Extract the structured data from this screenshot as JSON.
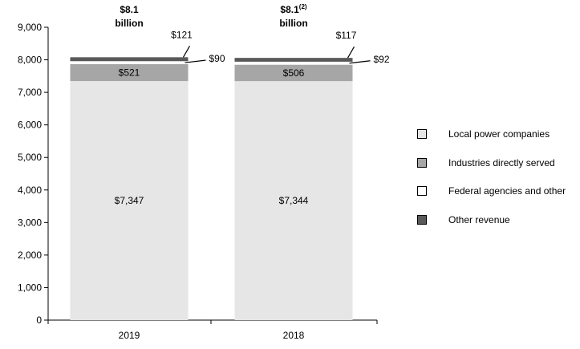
{
  "chart_data": {
    "type": "bar",
    "stacked": true,
    "categories": [
      "2019",
      "2018"
    ],
    "series": [
      {
        "name": "Local power companies",
        "values": [
          7347,
          7344
        ],
        "labels": [
          "$7,347",
          "$7,344"
        ],
        "color": "#e6e6e6"
      },
      {
        "name": "Industries directly served",
        "values": [
          521,
          506
        ],
        "labels": [
          "$521",
          "$506"
        ],
        "color": "#a6a6a6"
      },
      {
        "name": "Federal agencies and other",
        "values": [
          90,
          92
        ],
        "labels": [
          "$90",
          "$92"
        ],
        "color": "#ffffff"
      },
      {
        "name": "Other revenue",
        "values": [
          121,
          117
        ],
        "labels": [
          "$121",
          "$117"
        ],
        "color": "#595959"
      }
    ],
    "totals": [
      {
        "value": "$8.1",
        "sup": "",
        "unit": "billion"
      },
      {
        "value": "$8.1",
        "sup": "(2)",
        "unit": "billion"
      }
    ],
    "ylim": [
      0,
      9000
    ],
    "yticks": [
      "0",
      "1,000",
      "2,000",
      "3,000",
      "4,000",
      "5,000",
      "6,000",
      "7,000",
      "8,000",
      "9,000"
    ],
    "ytick_values": [
      0,
      1000,
      2000,
      3000,
      4000,
      5000,
      6000,
      7000,
      8000,
      9000
    ],
    "grid": false,
    "legend_position": "right",
    "xlabel": "",
    "ylabel": ""
  }
}
